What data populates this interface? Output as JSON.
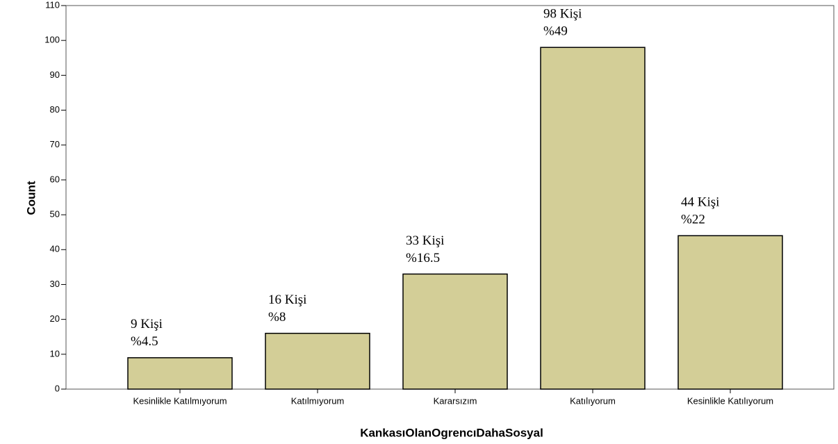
{
  "chart_data": {
    "type": "bar",
    "x_label": "KankasıOlanOgrencıDahaSosyal",
    "y_label": "Count",
    "categories": [
      "Kesinlikle Katılmıyorum",
      "Katılmıyorum",
      "Kararsızım",
      "Katılıyorum",
      "Kesinlikle Katılıyorum"
    ],
    "values": [
      9,
      16,
      33,
      98,
      44
    ],
    "value_labels": [
      "9 Kişi",
      "16 Kişi",
      "33 Kişi",
      "98 Kişi",
      "44 Kişi"
    ],
    "percent_labels": [
      "%4.5",
      "%8",
      "%16.5",
      "%49",
      "%22"
    ],
    "color": "#d3ce97",
    "ylim": [
      0,
      110
    ],
    "yticks": [
      0,
      10,
      20,
      30,
      40,
      50,
      60,
      70,
      80,
      90,
      100,
      110
    ],
    "grid": false
  }
}
